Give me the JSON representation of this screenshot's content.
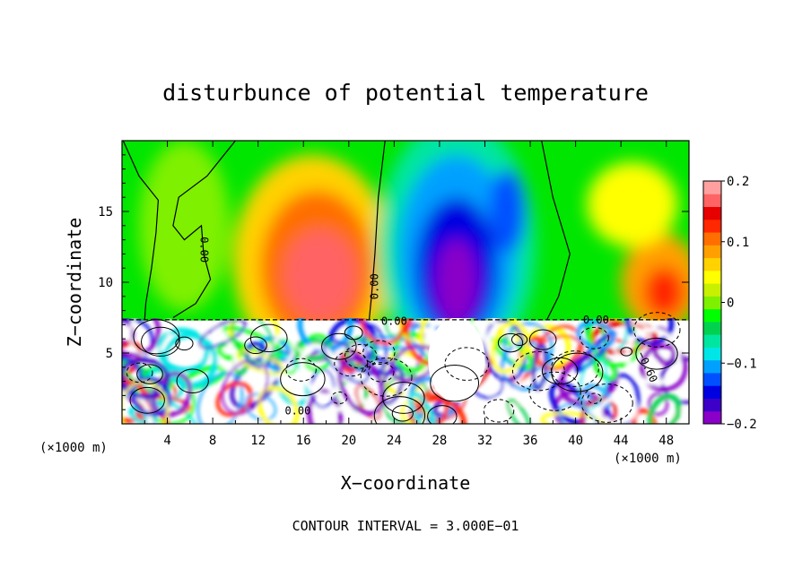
{
  "chart_data": {
    "type": "heatmap",
    "title": "disturbunce of potential temperature",
    "xlabel": "X−coordinate",
    "ylabel": "Z−coordinate",
    "x_unit": "(×1000 m)",
    "y_unit": "(×1000 m)",
    "xlim": [
      0,
      50
    ],
    "ylim": [
      0,
      20
    ],
    "x_ticks": [
      4,
      8,
      12,
      16,
      20,
      24,
      28,
      32,
      36,
      40,
      44,
      48
    ],
    "y_ticks": [
      5,
      10,
      15
    ],
    "colorbar": {
      "min": -0.2,
      "max": 0.2,
      "ticks": [
        {
          "value": 0.2,
          "label": "0.2"
        },
        {
          "value": 0.1,
          "label": "0.1"
        },
        {
          "value": 0,
          "label": "0"
        },
        {
          "value": -0.1,
          "label": "−0.1"
        },
        {
          "value": -0.2,
          "label": "−0.2"
        }
      ],
      "colors": [
        "#8a00c8",
        "#3c00c8",
        "#0000e0",
        "#0050ff",
        "#00a0ff",
        "#00e6e6",
        "#00e6a0",
        "#00d250",
        "#00ff00",
        "#7ff000",
        "#c8f000",
        "#ffff00",
        "#ffd200",
        "#ffa000",
        "#ff6e00",
        "#ff2800",
        "#e60000",
        "#ff6464",
        "#ffa0a0"
      ]
    },
    "features": [
      {
        "x": 17.5,
        "z": 11.0,
        "value": 0.16
      },
      {
        "x": 47.5,
        "z": 9.5,
        "value": 0.12
      },
      {
        "x": 29.5,
        "z": 12.0,
        "value": -0.17
      },
      {
        "x": 29.5,
        "z": 10.0,
        "value": -0.2
      },
      {
        "x": 34.0,
        "z": 15.0,
        "value": -0.13
      },
      {
        "x": 25.5,
        "z": 10.5,
        "value": -0.15
      },
      {
        "x": 5.5,
        "z": 15.0,
        "value": 0.01
      },
      {
        "x": 45.0,
        "z": 15.0,
        "value": 0.04
      }
    ],
    "contour_labels": [
      {
        "text": "0.00",
        "x": 7.2,
        "z": 12.3,
        "angle": 90
      },
      {
        "text": "0.00",
        "x": 22.3,
        "z": 9.7,
        "angle": -90
      },
      {
        "text": "0.00",
        "x": 24.0,
        "z": 7.2,
        "angle": 0
      },
      {
        "text": "0.00",
        "x": 41.8,
        "z": 7.3,
        "angle": 0
      },
      {
        "text": "0.00",
        "x": 15.5,
        "z": 0.9,
        "angle": 0
      },
      {
        "text": "−0.60",
        "x": 46.3,
        "z": 4.0,
        "angle": 65
      }
    ],
    "contour_interval_label": "CONTOUR INTERVAL = 3.000E−01"
  }
}
